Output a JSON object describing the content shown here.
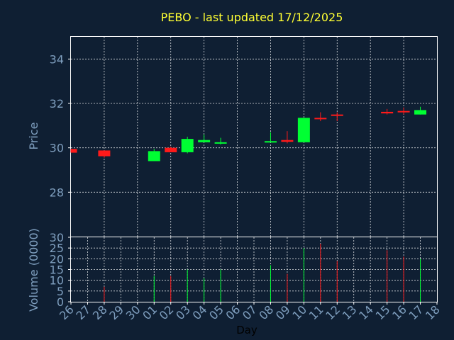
{
  "chart_data": {
    "type": "candlestick",
    "title": "PEBO - last updated 17/12/2025",
    "ylabel_price": "Price",
    "ylabel_volume": "Volume (0000)",
    "xlabel": "Day",
    "price_ylim": [
      26,
      35
    ],
    "price_yticks": [
      28,
      30,
      32,
      34
    ],
    "volume_ylim": [
      0,
      30
    ],
    "volume_yticks": [
      0,
      5,
      10,
      15,
      20,
      25,
      30
    ],
    "grid": true,
    "colors": {
      "up": "#00ff33",
      "down": "#ff1a1a",
      "background": "#0f1f33",
      "text": "#7f9fbf",
      "title": "#ffff33"
    },
    "x_ticks": [
      "26",
      "27",
      "28",
      "29",
      "30",
      "01",
      "02",
      "03",
      "04",
      "05",
      "06",
      "07",
      "08",
      "09",
      "10",
      "11",
      "12",
      "13",
      "14",
      "15",
      "16",
      "17",
      "18"
    ],
    "candles": [
      {
        "day": "26",
        "open": 29.95,
        "high": 29.95,
        "low": 29.78,
        "close": 29.78,
        "volume": 0
      },
      {
        "day": "28",
        "open": 29.88,
        "high": 29.88,
        "low": 29.55,
        "close": 29.62,
        "volume": 7
      },
      {
        "day": "01",
        "open": 29.4,
        "high": 29.95,
        "low": 29.4,
        "close": 29.85,
        "volume": 12
      },
      {
        "day": "02",
        "open": 30.0,
        "high": 30.05,
        "low": 29.8,
        "close": 29.8,
        "volume": 12
      },
      {
        "day": "03",
        "open": 29.8,
        "high": 30.5,
        "low": 29.75,
        "close": 30.4,
        "volume": 15
      },
      {
        "day": "04",
        "open": 30.25,
        "high": 30.6,
        "low": 30.25,
        "close": 30.35,
        "volume": 11
      },
      {
        "day": "05",
        "open": 30.2,
        "high": 30.45,
        "low": 30.15,
        "close": 30.25,
        "volume": 15
      },
      {
        "day": "08",
        "open": 30.27,
        "high": 30.7,
        "low": 30.25,
        "close": 30.3,
        "volume": 17
      },
      {
        "day": "09",
        "open": 30.35,
        "high": 30.75,
        "low": 30.2,
        "close": 30.27,
        "volume": 13
      },
      {
        "day": "10",
        "open": 30.25,
        "high": 31.35,
        "low": 30.25,
        "close": 31.35,
        "volume": 25
      },
      {
        "day": "11",
        "open": 31.35,
        "high": 31.6,
        "low": 31.2,
        "close": 31.3,
        "volume": 27
      },
      {
        "day": "12",
        "open": 31.5,
        "high": 31.6,
        "low": 31.2,
        "close": 31.45,
        "volume": 19
      },
      {
        "day": "15",
        "open": 31.62,
        "high": 31.75,
        "low": 31.5,
        "close": 31.55,
        "volume": 24
      },
      {
        "day": "16",
        "open": 31.66,
        "high": 31.82,
        "low": 31.5,
        "close": 31.6,
        "volume": 21
      },
      {
        "day": "17",
        "open": 31.5,
        "high": 31.85,
        "low": 31.5,
        "close": 31.7,
        "volume": 20
      }
    ]
  }
}
